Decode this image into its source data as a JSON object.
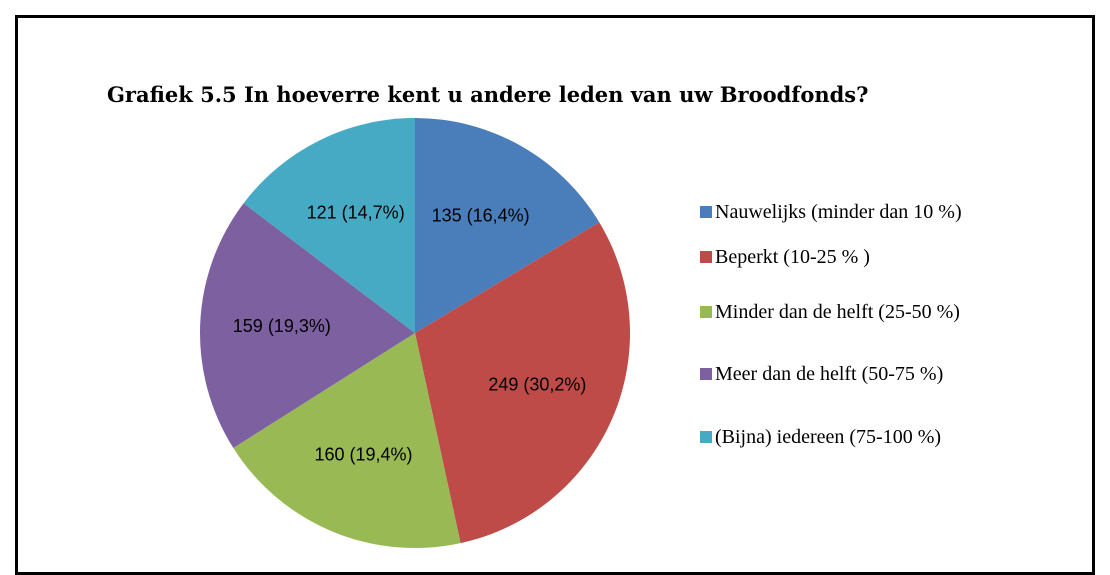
{
  "chart_data": {
    "type": "pie",
    "title": "Grafiek 5.5 In hoeverre kent u andere leden van uw Broodfonds?",
    "categories": [
      "Nauwelijks (minder dan 10 %)",
      "Beperkt (10-25 % )",
      "Minder dan de helft (25-50 %)",
      "Meer dan de helft (50-75 %)",
      "(Bijna) iedereen (75-100 %)"
    ],
    "values": [
      135,
      249,
      160,
      159,
      121
    ],
    "value_labels": [
      "135 (16,4%)",
      "249 (30,2%)",
      "160 (19,4%)",
      "159 (19,3%)",
      "121 (14,7%)"
    ],
    "colors": [
      "#4a7ebb",
      "#be4b48",
      "#98b954",
      "#7d60a0",
      "#46aac5"
    ],
    "legend": "right"
  }
}
